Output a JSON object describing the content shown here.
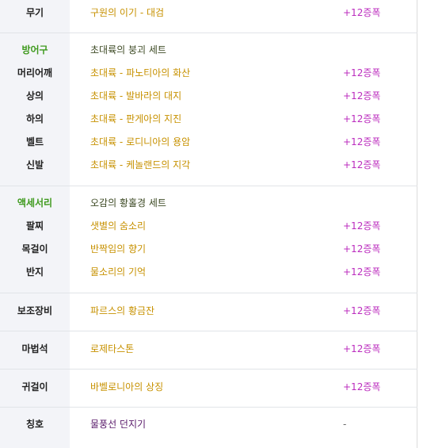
{
  "weapon": {
    "label": "무기",
    "item": "구원의 이기 - 대검",
    "value": "+12증폭"
  },
  "armor": {
    "category": "방어구",
    "set_name": "초대륙의 붕괴 세트",
    "rows": [
      {
        "label": "머리어깨",
        "item": "초대륙 - 파노티아의 화산",
        "value": "+12증폭"
      },
      {
        "label": "상의",
        "item": "초대륙 - 발바라의 대지",
        "value": "+12증폭"
      },
      {
        "label": "하의",
        "item": "초대륙 - 판게아의 지진",
        "value": "+12증폭"
      },
      {
        "label": "벨트",
        "item": "초대륙 - 로디니아의 용암",
        "value": "+12증폭"
      },
      {
        "label": "신발",
        "item": "초대륙 - 케놀랜드의 지각",
        "value": "+12증폭"
      }
    ]
  },
  "accessory": {
    "category": "액세서리",
    "set_name": "오감의 황홀경 세트",
    "rows": [
      {
        "label": "팔찌",
        "item": "샛별의 숨소리",
        "value": "+12증폭"
      },
      {
        "label": "목걸이",
        "item": "반짝임의 향기",
        "value": "+12증폭"
      },
      {
        "label": "반지",
        "item": "물소리의 기억",
        "value": "+12증폭"
      }
    ]
  },
  "sub_equipment": {
    "label": "보조장비",
    "item": "파르스의 황금잔",
    "value": "+12증폭"
  },
  "magic_stone": {
    "label": "마법석",
    "item": "로제타스톤",
    "value": "+12증폭"
  },
  "earring": {
    "label": "귀걸이",
    "item": "바벨로니아의 상징",
    "value": "+12증폭"
  },
  "title": {
    "label": "칭호",
    "item": "물풍선 던지기",
    "value": "-"
  }
}
